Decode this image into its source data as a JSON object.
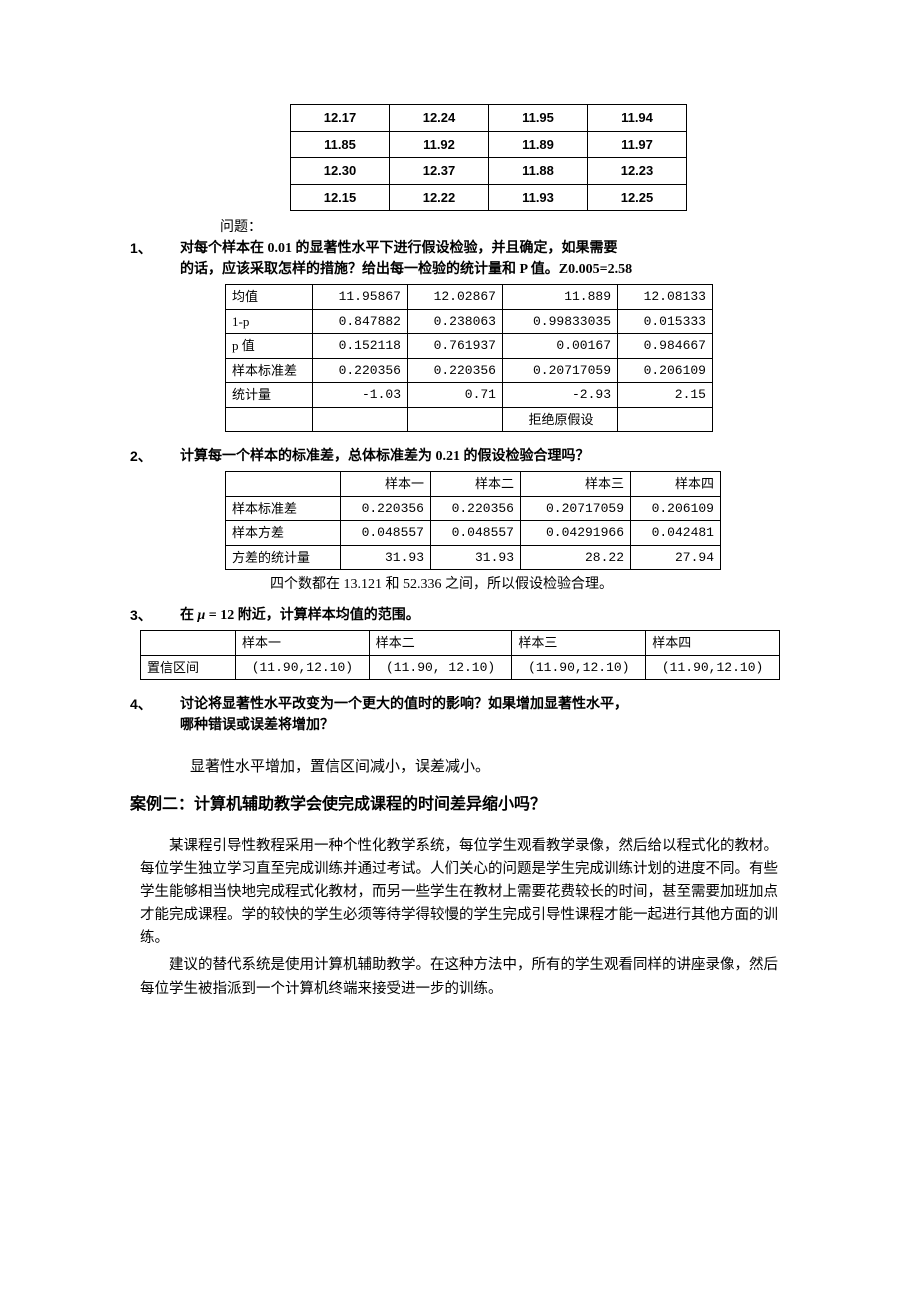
{
  "data_table": {
    "rows": [
      [
        "12.17",
        "12.24",
        "11.95",
        "11.94"
      ],
      [
        "11.85",
        "11.92",
        "11.89",
        "11.97"
      ],
      [
        "12.30",
        "12.37",
        "11.88",
        "12.23"
      ],
      [
        "12.15",
        "12.22",
        "11.93",
        "12.25"
      ]
    ]
  },
  "intro_q": "问题：",
  "q1": {
    "num": "1、",
    "text_l1": "对每个样本在 0.01 的显著性水平下进行假设检验，并且确定，如果需要",
    "text_l2": "的话，应该采取怎样的措施？给出每一检验的统计量和 P 值。Z0.005=2.58"
  },
  "stats": {
    "rows": [
      [
        "均值",
        "11.95867",
        "12.02867",
        "11.889",
        "12.08133"
      ],
      [
        "1-p",
        "0.847882",
        "0.238063",
        "0.99833035",
        "0.015333"
      ],
      [
        "p 值",
        "0.152118",
        "0.761937",
        "0.00167",
        "0.984667"
      ],
      [
        "样本标准差",
        "0.220356",
        "0.220356",
        "0.20717059",
        "0.206109"
      ],
      [
        "统计量",
        "-1.03",
        "0.71",
        "-2.93",
        "2.15"
      ],
      [
        "",
        "",
        "",
        "拒绝原假设",
        ""
      ]
    ]
  },
  "q2": {
    "num": "2、",
    "text": "计算每一个样本的标准差，总体标准差为 0.21 的假设检验合理吗？"
  },
  "t2": {
    "headers": [
      "",
      "样本一",
      "样本二",
      "样本三",
      "样本四"
    ],
    "rows": [
      [
        "样本标准差",
        "0.220356",
        "0.220356",
        "0.20717059",
        "0.206109"
      ],
      [
        "样本方差",
        "0.048557",
        "0.048557",
        "0.04291966",
        "0.042481"
      ],
      [
        "方差的统计量",
        "31.93",
        "31.93",
        "28.22",
        "27.94"
      ]
    ],
    "note": "四个数都在 13.121 和 52.336 之间，所以假设检验合理。"
  },
  "q3": {
    "num": "3、",
    "text_pre": "在 ",
    "text_mu": "μ",
    "text_eq": " = 12 附近，计算样本均值的范围。"
  },
  "t3": {
    "headers": [
      "",
      "样本一",
      "样本二",
      "样本三",
      "样本四"
    ],
    "rows": [
      [
        "置信区间",
        "(11.90,12.10)",
        "(11.90, 12.10)",
        "(11.90,12.10)",
        "(11.90,12.10)"
      ]
    ]
  },
  "q4": {
    "num": "4、",
    "text_l1": "讨论将显著性水平改变为一个更大的值时的影响？如果增加显著性水平，",
    "text_l2": "哪种错误或误差将增加？"
  },
  "answer4": "显著性水平增加，置信区间减小，误差减小。",
  "case2_title": "案例二：计算机辅助教学会使完成课程的时间差异缩小吗？",
  "para1": "某课程引导性教程采用一种个性化教学系统，每位学生观看教学录像，然后给以程式化的教材。每位学生独立学习直至完成训练并通过考试。人们关心的问题是学生完成训练计划的进度不同。有些学生能够相当快地完成程式化教材，而另一些学生在教材上需要花费较长的时间，甚至需要加班加点才能完成课程。学的较快的学生必须等待学得较慢的学生完成引导性课程才能一起进行其他方面的训练。",
  "para2": "建议的替代系统是使用计算机辅助教学。在这种方法中，所有的学生观看同样的讲座录像，然后每位学生被指派到一个计算机终端来接受进一步的训练。"
}
